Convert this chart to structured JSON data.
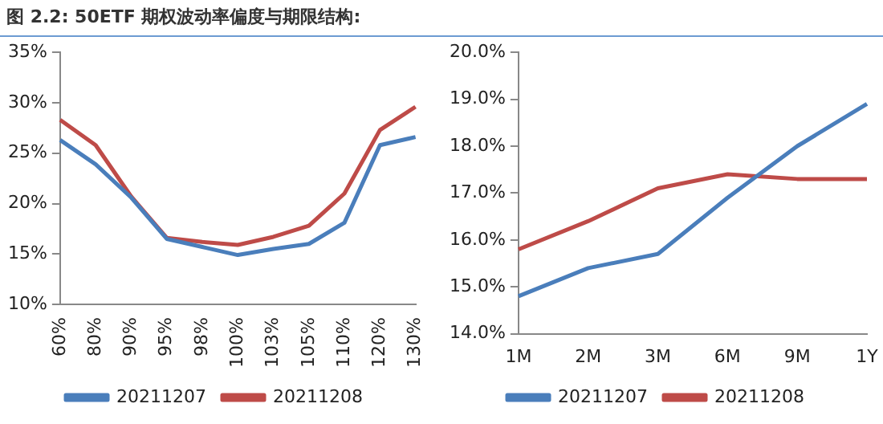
{
  "chart_data": [
    {
      "type": "line",
      "title": "图 2.2:  50ETF 期权波动率偏度与期限结构:",
      "categories": [
        "60%",
        "80%",
        "90%",
        "95%",
        "98%",
        "100%",
        "103%",
        "105%",
        "110%",
        "120%",
        "130%"
      ],
      "series": [
        {
          "name": "20211207",
          "color": "#4a7ebb",
          "values": [
            26.3,
            23.9,
            20.6,
            16.5,
            15.7,
            14.9,
            15.5,
            16.0,
            18.1,
            25.8,
            26.6
          ]
        },
        {
          "name": "20211208",
          "color": "#be4b48",
          "values": [
            28.3,
            25.8,
            20.7,
            16.6,
            16.2,
            15.9,
            16.7,
            17.8,
            21.0,
            27.3,
            29.6
          ]
        }
      ],
      "ylim": [
        10,
        35
      ],
      "yticks": [
        {
          "value": 10,
          "label": "10%"
        },
        {
          "value": 15,
          "label": "15%"
        },
        {
          "value": 20,
          "label": "20%"
        },
        {
          "value": 25,
          "label": "25%"
        },
        {
          "value": 30,
          "label": "30%"
        },
        {
          "value": 35,
          "label": "35%"
        }
      ],
      "grid": false,
      "legend": "bottom",
      "marker": "none",
      "line_style": "solid"
    },
    {
      "type": "line",
      "categories": [
        "1M",
        "2M",
        "3M",
        "6M",
        "9M",
        "1Y"
      ],
      "series": [
        {
          "name": "20211207",
          "color": "#4a7ebb",
          "values": [
            14.8,
            15.4,
            15.7,
            16.9,
            18.0,
            18.9
          ]
        },
        {
          "name": "20211208",
          "color": "#be4b48",
          "values": [
            15.8,
            16.4,
            17.1,
            17.4,
            17.3,
            17.3
          ]
        }
      ],
      "ylim": [
        14,
        20
      ],
      "yticks": [
        {
          "value": 14,
          "label": "14.0%"
        },
        {
          "value": 15,
          "label": "15.0%"
        },
        {
          "value": 16,
          "label": "16.0%"
        },
        {
          "value": 17,
          "label": "17.0%"
        },
        {
          "value": 18,
          "label": "18.0%"
        },
        {
          "value": 19,
          "label": "19.0%"
        },
        {
          "value": 20,
          "label": "20.0%"
        }
      ],
      "grid": false,
      "legend": "bottom",
      "marker": "none",
      "line_style": "solid"
    }
  ]
}
